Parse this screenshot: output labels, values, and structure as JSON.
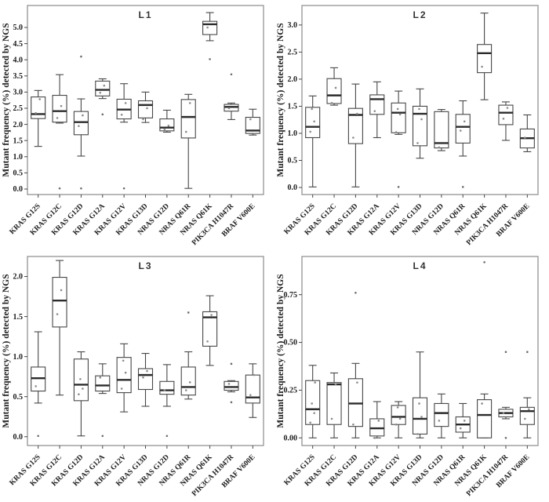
{
  "colors": {
    "border": "#8a8a8a",
    "axis": "#474747",
    "box_stroke": "#474747",
    "box_fill": "#ffffff",
    "median": "#2b2b2b",
    "point": "#8c8c8c",
    "outlier": "#6e6e6e",
    "text": "#1a1a1a"
  },
  "chart_data": [
    {
      "type": "box",
      "title": "L1",
      "ylabel": "Mutant frequency (%) detected by NGS",
      "ylim": [
        -0.17,
        5.68
      ],
      "grid": false,
      "yticks": [
        0.0,
        0.5,
        1.0,
        1.5,
        2.0,
        2.5,
        3.0,
        3.5,
        4.0,
        4.5,
        5.0
      ],
      "ytick_labels": [
        "0.0",
        "0.5",
        "1.0",
        "1.5",
        "2.0",
        "2.5",
        "3.0",
        "3.5",
        "4.0",
        "4.5",
        "5.0"
      ],
      "categories": [
        "KRAS G12S",
        "KRAS G12C",
        "KRAS G12D",
        "KRAS G12A",
        "KRAS G12V",
        "KRAS G13D",
        "NRAS G12D",
        "NRAS Q61R",
        "NRAS Q61K",
        "PIK3CA H1047R",
        "BRAF V600E"
      ],
      "boxes": [
        {
          "whisker_low": 1.32,
          "q1": 2.18,
          "median": 2.32,
          "q3": 2.85,
          "whisker_high": 3.05,
          "points": [
            2.35,
            2.78
          ],
          "outliers": []
        },
        {
          "whisker_low": 2.04,
          "q1": 2.07,
          "median": 2.41,
          "q3": 2.9,
          "whisker_high": 3.54,
          "points": [
            2.2,
            2.57
          ],
          "outliers": [
            0.02
          ]
        },
        {
          "whisker_low": 1.02,
          "q1": 1.68,
          "median": 2.07,
          "q3": 2.4,
          "whisker_high": 2.79,
          "points": [
            1.95,
            2.28
          ],
          "outliers": [
            4.1,
            0.02
          ]
        },
        {
          "whisker_low": 2.8,
          "q1": 2.88,
          "median": 3.07,
          "q3": 3.34,
          "whisker_high": 3.41,
          "points": [
            2.98,
            3.2
          ],
          "outliers": [
            2.31
          ]
        },
        {
          "whisker_low": 2.07,
          "q1": 2.17,
          "median": 2.46,
          "q3": 2.78,
          "whisker_high": 3.26,
          "points": [
            2.3,
            2.66
          ],
          "outliers": [
            0.02
          ]
        },
        {
          "whisker_low": 2.06,
          "q1": 2.2,
          "median": 2.6,
          "q3": 2.73,
          "whisker_high": 3.0,
          "points": [
            2.16,
            2.5
          ],
          "outliers": []
        },
        {
          "whisker_low": 1.76,
          "q1": 1.8,
          "median": 1.9,
          "q3": 2.17,
          "whisker_high": 2.44,
          "points": [
            1.85,
            1.96
          ],
          "outliers": []
        },
        {
          "whisker_low": 0.02,
          "q1": 1.58,
          "median": 2.23,
          "q3": 2.77,
          "whisker_high": 2.93,
          "points": [
            1.77,
            2.66
          ],
          "outliers": []
        },
        {
          "whisker_low": 4.59,
          "q1": 4.78,
          "median": 5.1,
          "q3": 5.19,
          "whisker_high": 5.46,
          "points": [
            5.0
          ],
          "outliers": [
            4.02
          ]
        },
        {
          "whisker_low": 2.15,
          "q1": 2.41,
          "median": 2.54,
          "q3": 2.62,
          "whisker_high": 2.66,
          "points": [
            2.5
          ],
          "outliers": [
            3.55
          ]
        },
        {
          "whisker_low": 1.67,
          "q1": 1.72,
          "median": 1.81,
          "q3": 2.22,
          "whisker_high": 2.47,
          "points": [
            2.16,
            1.7
          ],
          "outliers": []
        }
      ]
    },
    {
      "type": "box",
      "title": "L2",
      "ylabel": "Mutant frequency (%) detected by NGS",
      "ylim": [
        -0.13,
        3.36
      ],
      "grid": false,
      "yticks": [
        0.0,
        0.5,
        1.0,
        1.5,
        2.0,
        2.5,
        3.0
      ],
      "ytick_labels": [
        "0.0",
        "0.5",
        "1.0",
        "1.5",
        "2.0",
        "2.5",
        "3.0"
      ],
      "categories": [
        "KRAS G12S",
        "KRAS G12C",
        "KRAS G12D",
        "KRAS G12A",
        "KRAS G12V",
        "KRAS G13D",
        "NRAS G12D",
        "NRAS Q61R",
        "NRAS Q61K",
        "PIK3CA H1047R",
        "BRAF V600E"
      ],
      "boxes": [
        {
          "whisker_low": 0.01,
          "q1": 0.92,
          "median": 1.12,
          "q3": 1.48,
          "whisker_high": 1.69,
          "points": [
            1.03,
            1.22,
            1.45
          ],
          "outliers": []
        },
        {
          "whisker_low": 1.52,
          "q1": 1.55,
          "median": 1.7,
          "q3": 2.01,
          "whisker_high": 2.21,
          "points": [
            1.56,
            1.84
          ],
          "outliers": []
        },
        {
          "whisker_low": 0.01,
          "q1": 0.81,
          "median": 1.34,
          "q3": 1.46,
          "whisker_high": 1.91,
          "points": [
            0.92,
            1.36
          ],
          "outliers": []
        },
        {
          "whisker_low": 0.92,
          "q1": 1.35,
          "median": 1.63,
          "q3": 1.71,
          "whisker_high": 1.95,
          "points": [
            1.41
          ],
          "outliers": []
        },
        {
          "whisker_low": 0.98,
          "q1": 1.01,
          "median": 1.38,
          "q3": 1.56,
          "whisker_high": 1.78,
          "points": [
            1.02,
            1.35,
            1.45
          ],
          "outliers": [
            0.01
          ]
        },
        {
          "whisker_low": 0.54,
          "q1": 0.77,
          "median": 1.36,
          "q3": 1.5,
          "whisker_high": 1.82,
          "points": [
            0.82,
            1.26,
            1.45
          ],
          "outliers": []
        },
        {
          "whisker_low": 0.68,
          "q1": 0.73,
          "median": 0.82,
          "q3": 1.4,
          "whisker_high": 1.44,
          "points": [
            0.74
          ],
          "outliers": []
        },
        {
          "whisker_low": 0.58,
          "q1": 0.82,
          "median": 1.12,
          "q3": 1.35,
          "whisker_high": 1.6,
          "points": [
            1.05,
            1.22
          ],
          "outliers": [
            0.01
          ]
        },
        {
          "whisker_low": 1.62,
          "q1": 2.12,
          "median": 2.48,
          "q3": 2.64,
          "whisker_high": 3.22,
          "points": [
            2.23
          ],
          "outliers": []
        },
        {
          "whisker_low": 0.87,
          "q1": 1.16,
          "median": 1.38,
          "q3": 1.52,
          "whisker_high": 1.58,
          "points": [
            1.27,
            1.47
          ],
          "outliers": []
        },
        {
          "whisker_low": 0.66,
          "q1": 0.73,
          "median": 0.91,
          "q3": 1.08,
          "whisker_high": 1.34,
          "points": [
            0.92
          ],
          "outliers": []
        }
      ]
    },
    {
      "type": "box",
      "title": "L3",
      "ylabel": "Mutant frequency (%) detected by NGS",
      "ylim": [
        -0.11,
        2.25
      ],
      "grid": false,
      "yticks": [
        0.0,
        0.5,
        1.0,
        1.5,
        2.0
      ],
      "ytick_labels": [
        "0.0",
        "0.5",
        "1.0",
        "1.5",
        "2.0"
      ],
      "categories": [
        "KRAS G12S",
        "KRAS G12C",
        "KRAS G12D",
        "KRAS G12A",
        "KRAS G12V",
        "KRAS G13D",
        "NRAS G12D",
        "NRAS Q61R",
        "NRAS Q61K",
        "PIK3CA H1047R",
        "BRAF V600E"
      ],
      "boxes": [
        {
          "whisker_low": 0.42,
          "q1": 0.57,
          "median": 0.73,
          "q3": 0.87,
          "whisker_high": 1.31,
          "points": [
            0.63
          ],
          "outliers": [
            0.01
          ]
        },
        {
          "whisker_low": 0.52,
          "q1": 1.37,
          "median": 1.7,
          "q3": 1.99,
          "whisker_high": 2.2,
          "points": [
            1.53,
            1.83
          ],
          "outliers": []
        },
        {
          "whisker_low": 0.01,
          "q1": 0.45,
          "median": 0.65,
          "q3": 0.97,
          "whisker_high": 1.06,
          "points": [
            0.53,
            0.6,
            0.72
          ],
          "outliers": []
        },
        {
          "whisker_low": 0.54,
          "q1": 0.57,
          "median": 0.64,
          "q3": 0.76,
          "whisker_high": 0.91,
          "points": [
            0.74
          ],
          "outliers": [
            0.01
          ]
        },
        {
          "whisker_low": 0.31,
          "q1": 0.55,
          "median": 0.71,
          "q3": 0.99,
          "whisker_high": 1.16,
          "points": [
            0.6,
            0.8,
            0.95
          ],
          "outliers": []
        },
        {
          "whisker_low": 0.38,
          "q1": 0.59,
          "median": 0.77,
          "q3": 0.85,
          "whisker_high": 1.04,
          "points": [
            0.74,
            0.82
          ],
          "outliers": []
        },
        {
          "whisker_low": 0.38,
          "q1": 0.53,
          "median": 0.58,
          "q3": 0.69,
          "whisker_high": 0.9,
          "points": [
            0.58
          ],
          "outliers": [
            0.01
          ]
        },
        {
          "whisker_low": 0.47,
          "q1": 0.52,
          "median": 0.62,
          "q3": 0.87,
          "whisker_high": 1.06,
          "points": [
            0.58,
            0.68
          ],
          "outliers": [
            1.55
          ]
        },
        {
          "whisker_low": 0.89,
          "q1": 1.13,
          "median": 1.49,
          "q3": 1.56,
          "whisker_high": 1.76,
          "points": [
            1.19,
            1.52
          ],
          "outliers": []
        },
        {
          "whisker_low": 0.56,
          "q1": 0.58,
          "median": 0.62,
          "q3": 0.69,
          "whisker_high": 0.7,
          "points": [
            0.66
          ],
          "outliers": [
            0.91,
            0.43
          ]
        },
        {
          "whisker_low": 0.24,
          "q1": 0.42,
          "median": 0.49,
          "q3": 0.77,
          "whisker_high": 0.91,
          "points": [
            0.52,
            0.77
          ],
          "outliers": []
        }
      ]
    },
    {
      "type": "box",
      "title": "L4",
      "ylabel": "Mutant frequency (%) detected by NGS",
      "ylim": [
        -0.04,
        0.95
      ],
      "grid": false,
      "yticks": [
        0.0,
        0.25,
        0.5,
        0.75
      ],
      "ytick_labels": [
        "0.00",
        "0.25",
        "0.50",
        "0.75"
      ],
      "categories": [
        "KRAS G12S",
        "KRAS G12C",
        "KRAS G12D",
        "KRAS G12A",
        "KRAS G12V",
        "KRAS G13D",
        "NRAS G12D",
        "NRAS Q61R",
        "NRAS Q61K",
        "PIK3CA H1047R",
        "BRAF V600E"
      ],
      "boxes": [
        {
          "whisker_low": 0.0,
          "q1": 0.07,
          "median": 0.15,
          "q3": 0.3,
          "whisker_high": 0.38,
          "points": [
            0.08,
            0.13,
            0.18,
            0.29
          ],
          "outliers": []
        },
        {
          "whisker_low": 0.0,
          "q1": 0.07,
          "median": 0.28,
          "q3": 0.29,
          "whisker_high": 0.34,
          "points": [
            0.1,
            0.28
          ],
          "outliers": []
        },
        {
          "whisker_low": 0.0,
          "q1": 0.06,
          "median": 0.18,
          "q3": 0.31,
          "whisker_high": 0.39,
          "points": [
            0.07,
            0.29
          ],
          "outliers": [
            0.76
          ]
        },
        {
          "whisker_low": 0.0,
          "q1": 0.01,
          "median": 0.05,
          "q3": 0.1,
          "whisker_high": 0.19,
          "points": [
            0.0,
            0.09
          ],
          "outliers": []
        },
        {
          "whisker_low": 0.0,
          "q1": 0.07,
          "median": 0.11,
          "q3": 0.17,
          "whisker_high": 0.19,
          "points": [
            0.07,
            0.1,
            0.16
          ],
          "outliers": []
        },
        {
          "whisker_low": 0.0,
          "q1": 0.02,
          "median": 0.1,
          "q3": 0.21,
          "whisker_high": 0.45,
          "points": [
            0.02,
            0.11,
            0.18
          ],
          "outliers": []
        },
        {
          "whisker_low": 0.0,
          "q1": 0.06,
          "median": 0.13,
          "q3": 0.18,
          "whisker_high": 0.23,
          "points": [
            0.09
          ],
          "outliers": []
        },
        {
          "whisker_low": 0.0,
          "q1": 0.03,
          "median": 0.07,
          "q3": 0.11,
          "whisker_high": 0.18,
          "points": [
            0.05,
            0.09
          ],
          "outliers": []
        },
        {
          "whisker_low": 0.0,
          "q1": 0.0,
          "median": 0.12,
          "q3": 0.2,
          "whisker_high": 0.23,
          "points": [
            0.18
          ],
          "outliers": [
            0.92
          ]
        },
        {
          "whisker_low": 0.1,
          "q1": 0.11,
          "median": 0.13,
          "q3": 0.15,
          "whisker_high": 0.16,
          "points": [
            0.13
          ],
          "outliers": [
            0.45,
            0.0
          ]
        },
        {
          "whisker_low": 0.0,
          "q1": 0.07,
          "median": 0.14,
          "q3": 0.16,
          "whisker_high": 0.21,
          "points": [
            0.1,
            0.15
          ],
          "outliers": [
            0.45
          ]
        }
      ]
    }
  ]
}
